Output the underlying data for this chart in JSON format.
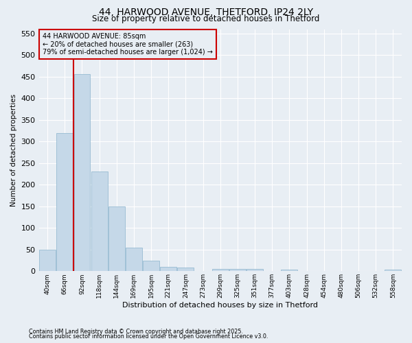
{
  "title1": "44, HARWOOD AVENUE, THETFORD, IP24 2LY",
  "title2": "Size of property relative to detached houses in Thetford",
  "xlabel": "Distribution of detached houses by size in Thetford",
  "ylabel": "Number of detached properties",
  "categories": [
    "40sqm",
    "66sqm",
    "92sqm",
    "118sqm",
    "144sqm",
    "169sqm",
    "195sqm",
    "221sqm",
    "247sqm",
    "273sqm",
    "299sqm",
    "325sqm",
    "351sqm",
    "377sqm",
    "403sqm",
    "428sqm",
    "454sqm",
    "480sqm",
    "506sqm",
    "532sqm",
    "558sqm"
  ],
  "values": [
    50,
    320,
    456,
    230,
    150,
    55,
    25,
    10,
    8,
    0,
    5,
    5,
    5,
    0,
    3,
    0,
    0,
    0,
    0,
    0,
    3
  ],
  "bar_color": "#c5d8e8",
  "bar_edge_color": "#8ab4cc",
  "bg_color": "#e8eef4",
  "grid_color": "#ffffff",
  "annotation_line1": "44 HARWOOD AVENUE: 85sqm",
  "annotation_line2": "← 20% of detached houses are smaller (263)",
  "annotation_line3": "79% of semi-detached houses are larger (1,024) →",
  "vline_color": "#cc0000",
  "annotation_box_edge": "#cc0000",
  "ylim": [
    0,
    560
  ],
  "yticks": [
    0,
    50,
    100,
    150,
    200,
    250,
    300,
    350,
    400,
    450,
    500,
    550
  ],
  "footnote1": "Contains HM Land Registry data © Crown copyright and database right 2025.",
  "footnote2": "Contains public sector information licensed under the Open Government Licence v3.0."
}
